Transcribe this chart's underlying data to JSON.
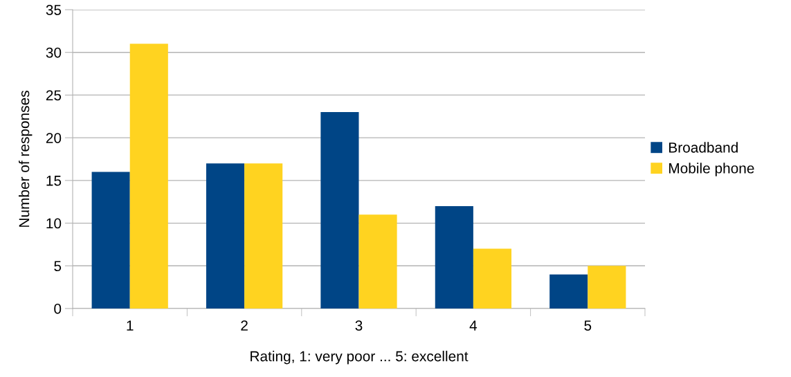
{
  "chart_data": {
    "type": "bar",
    "xlabel": "Rating, 1: very poor ... 5: excellent",
    "ylabel": "Number of responses",
    "categories": [
      "1",
      "2",
      "3",
      "4",
      "5"
    ],
    "series": [
      {
        "name": "Broadband",
        "color": "#004586",
        "values": [
          16,
          17,
          23,
          12,
          4
        ]
      },
      {
        "name": "Mobile phone",
        "color": "#ffd320",
        "values": [
          31,
          17,
          11,
          7,
          5
        ]
      }
    ],
    "ylim": [
      0,
      35
    ],
    "yticks": [
      0,
      5,
      10,
      15,
      20,
      25,
      30,
      35
    ],
    "grid": "y",
    "legend": "right"
  }
}
